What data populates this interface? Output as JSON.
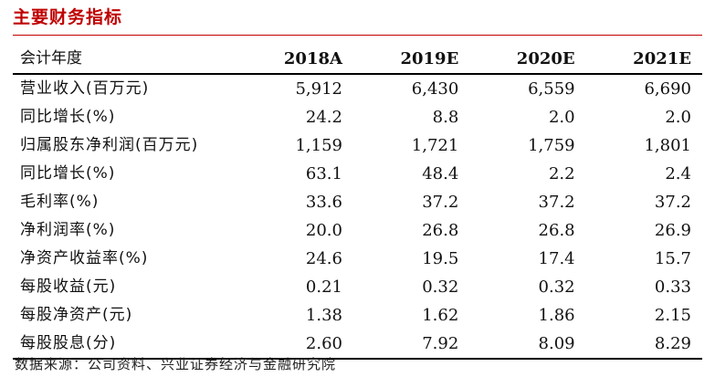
{
  "title": "主要财务指标",
  "table": {
    "header": {
      "label": "会计年度",
      "years": [
        "2018A",
        "2019E",
        "2020E",
        "2021E"
      ]
    },
    "rows": [
      {
        "label": "营业收入(百万元)",
        "values": [
          "5,912",
          "6,430",
          "6,559",
          "6,690"
        ]
      },
      {
        "label": "同比增长(%)",
        "values": [
          "24.2",
          "8.8",
          "2.0",
          "2.0"
        ]
      },
      {
        "label": "归属股东净利润(百万元)",
        "values": [
          "1,159",
          "1,721",
          "1,759",
          "1,801"
        ]
      },
      {
        "label": "同比增长(%)",
        "values": [
          "63.1",
          "48.4",
          "2.2",
          "2.4"
        ]
      },
      {
        "label": "毛利率(%)",
        "values": [
          "33.6",
          "37.2",
          "37.2",
          "37.2"
        ]
      },
      {
        "label": "净利润率(%)",
        "values": [
          "20.0",
          "26.8",
          "26.8",
          "26.9"
        ]
      },
      {
        "label": "净资产收益率(%)",
        "values": [
          "24.6",
          "19.5",
          "17.4",
          "15.7"
        ]
      },
      {
        "label": "每股收益(元)",
        "values": [
          "0.21",
          "0.32",
          "0.32",
          "0.33"
        ]
      },
      {
        "label": "每股净资产(元)",
        "values": [
          "1.38",
          "1.62",
          "1.86",
          "2.15"
        ]
      },
      {
        "label": "每股股息(分)",
        "values": [
          "2.60",
          "7.92",
          "8.09",
          "8.29"
        ]
      }
    ]
  },
  "source": "数据来源：公司资料、兴业证券经济与金融研究院",
  "colors": {
    "title": "#c00000",
    "text": "#111111",
    "rule": "#000000"
  }
}
